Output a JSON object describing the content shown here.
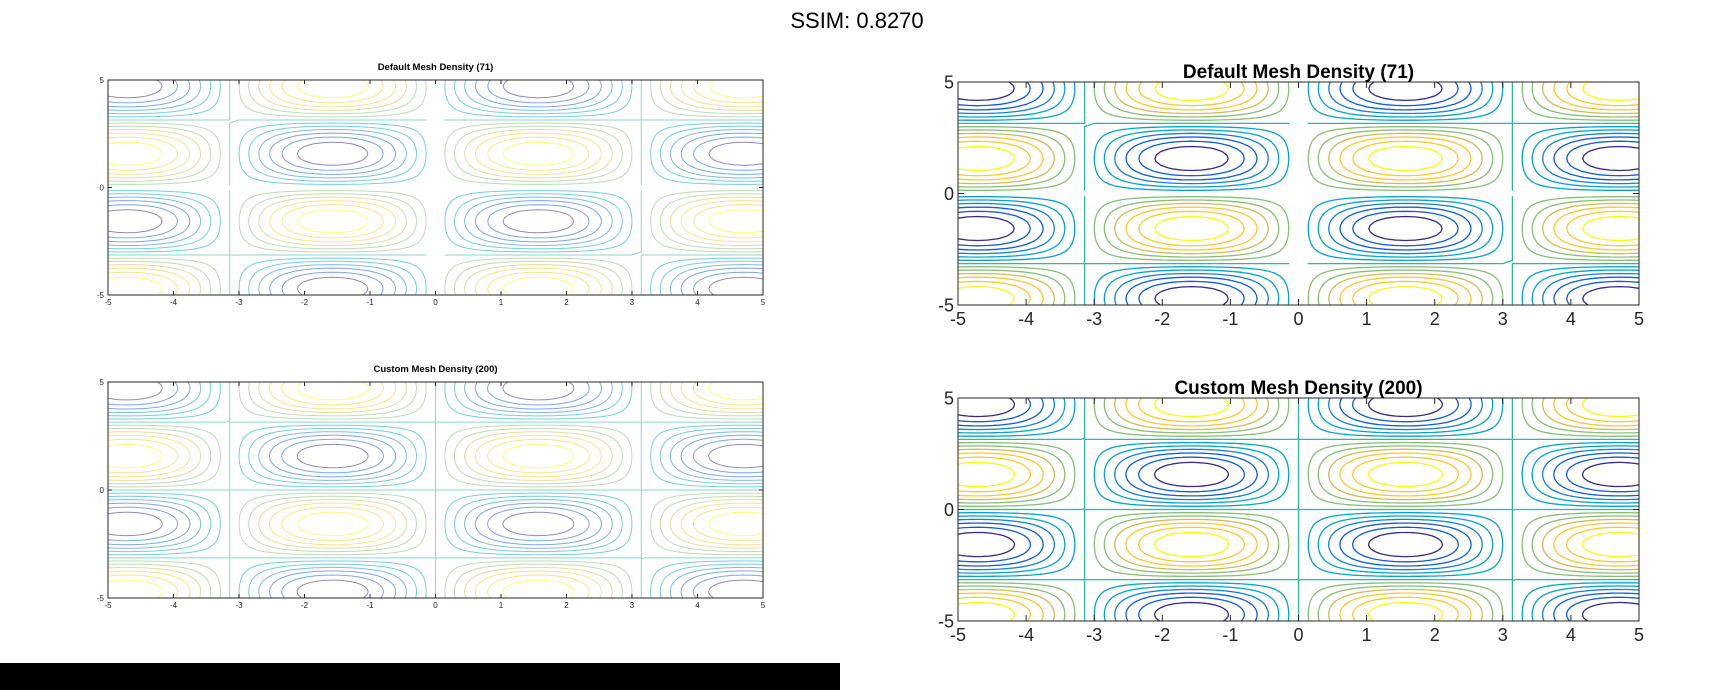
{
  "header": {
    "ssim_text": "SSIM: 0.8270"
  },
  "chart_data": [
    {
      "type": "contour",
      "panel": "left-top",
      "title": "Default Mesh Density (71)",
      "function": "sin(x)*sin(y)",
      "mesh_points": 71,
      "xlim": [
        -5,
        5
      ],
      "ylim": [
        -5,
        5
      ],
      "xticks": [
        -5,
        -4,
        -3,
        -2,
        -1,
        0,
        1,
        2,
        3,
        4,
        5
      ],
      "yticks": [
        -5,
        0,
        5
      ],
      "levels": [
        -0.857,
        -0.714,
        -0.571,
        -0.429,
        -0.286,
        -0.143,
        0,
        0.143,
        0.286,
        0.429,
        0.571,
        0.714,
        0.857
      ],
      "colormap": "parula",
      "style": "faded",
      "grid": false
    },
    {
      "type": "contour",
      "panel": "left-bottom",
      "title": "Custom Mesh Density (200)",
      "function": "sin(x)*sin(y)",
      "mesh_points": 200,
      "xlim": [
        -5,
        5
      ],
      "ylim": [
        -5,
        5
      ],
      "xticks": [
        -5,
        -4,
        -3,
        -2,
        -1,
        0,
        1,
        2,
        3,
        4,
        5
      ],
      "yticks": [
        -5,
        0,
        5
      ],
      "levels": [
        -0.857,
        -0.714,
        -0.571,
        -0.429,
        -0.286,
        -0.143,
        0,
        0.143,
        0.286,
        0.429,
        0.571,
        0.714,
        0.857
      ],
      "colormap": "parula",
      "style": "faded",
      "grid": false
    },
    {
      "type": "contour",
      "panel": "right-top",
      "title": "Default Mesh Density (71)",
      "function": "sin(x)*sin(y)",
      "mesh_points": 71,
      "xlim": [
        -5,
        5
      ],
      "ylim": [
        -5,
        5
      ],
      "xticks": [
        -5,
        -4,
        -3,
        -2,
        -1,
        0,
        1,
        2,
        3,
        4,
        5
      ],
      "yticks": [
        -5,
        0,
        5
      ],
      "levels": [
        -0.857,
        -0.714,
        -0.571,
        -0.429,
        -0.286,
        -0.143,
        0,
        0.143,
        0.286,
        0.429,
        0.571,
        0.714,
        0.857
      ],
      "colormap": "parula",
      "style": "vivid",
      "grid": false
    },
    {
      "type": "contour",
      "panel": "right-bottom",
      "title": "Custom Mesh Density (200)",
      "function": "sin(x)*sin(y)",
      "mesh_points": 200,
      "xlim": [
        -5,
        5
      ],
      "ylim": [
        -5,
        5
      ],
      "xticks": [
        -5,
        -4,
        -3,
        -2,
        -1,
        0,
        1,
        2,
        3,
        4,
        5
      ],
      "yticks": [
        -5,
        0,
        5
      ],
      "levels": [
        -0.857,
        -0.714,
        -0.571,
        -0.429,
        -0.286,
        -0.143,
        0,
        0.143,
        0.286,
        0.429,
        0.571,
        0.714,
        0.857
      ],
      "colormap": "parula",
      "style": "vivid",
      "grid": false
    }
  ],
  "colors": {
    "parula": [
      "#352a87",
      "#0f5cdd",
      "#1481d6",
      "#06a4ca",
      "#2eb7a4",
      "#87bf77",
      "#d1bb59",
      "#fec832",
      "#f9fb0e"
    ]
  }
}
